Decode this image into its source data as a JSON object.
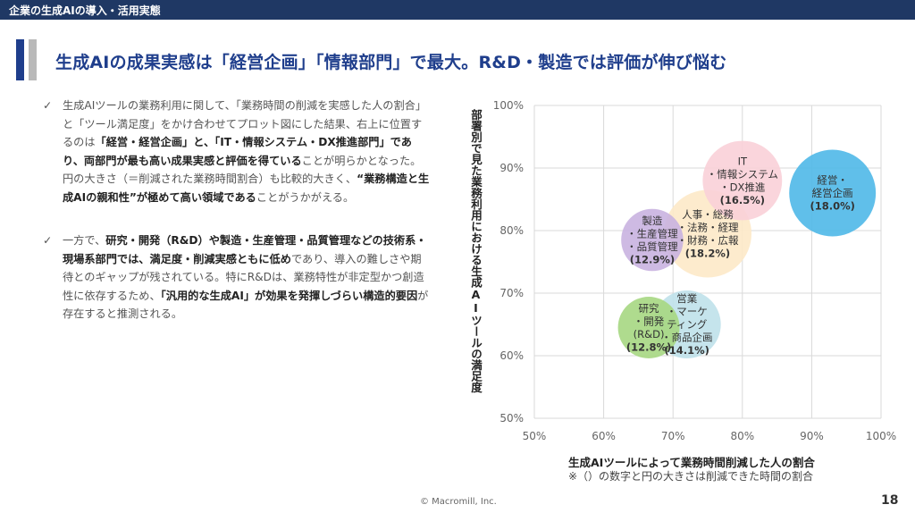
{
  "header": {
    "section": "企業の生成AIの導入・活用実態"
  },
  "headline": "生成AIの成果実感は「経営企画」「情報部門」で最大。R&D・製造では評価が伸び悩む",
  "bullets": [
    {
      "mark": "✓",
      "parts": [
        {
          "t": "生成AIツールの業務利用に関して、「業務時間の削減を実感した人の割合」と「ツール満足度」をかけ合わせてプロット図にした結果、右上に位置するのは",
          "b": false
        },
        {
          "t": "「経営・経営企画」と、「IT・情報システム・DX推進部門」であり、両部門が最も高い成果実感と評価を得ている",
          "b": true
        },
        {
          "t": "ことが明らかとなった。円の大きさ（＝削減された業務時間割合）も比較的大きく、",
          "b": false
        },
        {
          "t": "“業務構造と生成AIの親和性”が極めて高い領域である",
          "b": true
        },
        {
          "t": "ことがうかがえる。",
          "b": false
        }
      ]
    },
    {
      "mark": "✓",
      "parts": [
        {
          "t": "一方で、",
          "b": false
        },
        {
          "t": "研究・開発（R&D）や製造・生産管理・品質管理などの技術系・現場系部門では、満足度・削減実感ともに低め",
          "b": true
        },
        {
          "t": "であり、導入の難しさや期待とのギャップが残されている。特にR&Dは、業務特性が非定型かつ創造性に依存するため、",
          "b": false
        },
        {
          "t": "「汎用的な生成AI」が効果を発揮しづらい構造的要因",
          "b": true
        },
        {
          "t": "が存在すると推測される。",
          "b": false
        }
      ]
    }
  ],
  "chart_data": {
    "type": "scatter",
    "xlabel": "生成AIツールによって業務時間削減した人の割合",
    "ylabel": "部署別で見た業務利用における生成AIツールの満足度",
    "note": "※（）の数字と円の大きさは削減できた時間の割合",
    "xlim": [
      50,
      100
    ],
    "ylim": [
      50,
      100
    ],
    "xticks": [
      "50%",
      "60%",
      "70%",
      "80%",
      "90%",
      "100%"
    ],
    "yticks": [
      "50%",
      "60%",
      "70%",
      "80%",
      "90%",
      "100%"
    ],
    "grid": true,
    "points": [
      {
        "lines": [
          "人事・総務",
          "・法務・経理",
          "・財務・広報"
        ],
        "pct": "(18.2%)",
        "x": 75.0,
        "y": 79.5,
        "size": 18.2,
        "color": "#fde9c8"
      },
      {
        "lines": [
          "営業",
          "・マーケ",
          "ティング",
          "・商品企画"
        ],
        "pct": "(14.1%)",
        "x": 72.0,
        "y": 65.0,
        "size": 14.1,
        "color": "#bfe1ea"
      },
      {
        "lines": [
          "製造",
          "・生産管理",
          "・品質管理"
        ],
        "pct": "(12.9%)",
        "x": 67.0,
        "y": 78.5,
        "size": 12.9,
        "color": "#c9b3e0"
      },
      {
        "lines": [
          "研究",
          "・開発",
          "(R&D)"
        ],
        "pct": "(12.8%)",
        "x": 66.5,
        "y": 64.5,
        "size": 12.8,
        "color": "#a6d782"
      },
      {
        "lines": [
          "IT",
          "・情報システム",
          "・DX推進"
        ],
        "pct": "(16.5%)",
        "x": 80.0,
        "y": 88.0,
        "size": 16.5,
        "color": "#fad0d8"
      },
      {
        "lines": [
          "経営・",
          "経営企画"
        ],
        "pct": "(18.0%)",
        "x": 93.0,
        "y": 86.0,
        "size": 18.0,
        "color": "#4fb8e8"
      }
    ]
  },
  "footer": {
    "copyright": "© Macromill, Inc.",
    "page": "18"
  }
}
